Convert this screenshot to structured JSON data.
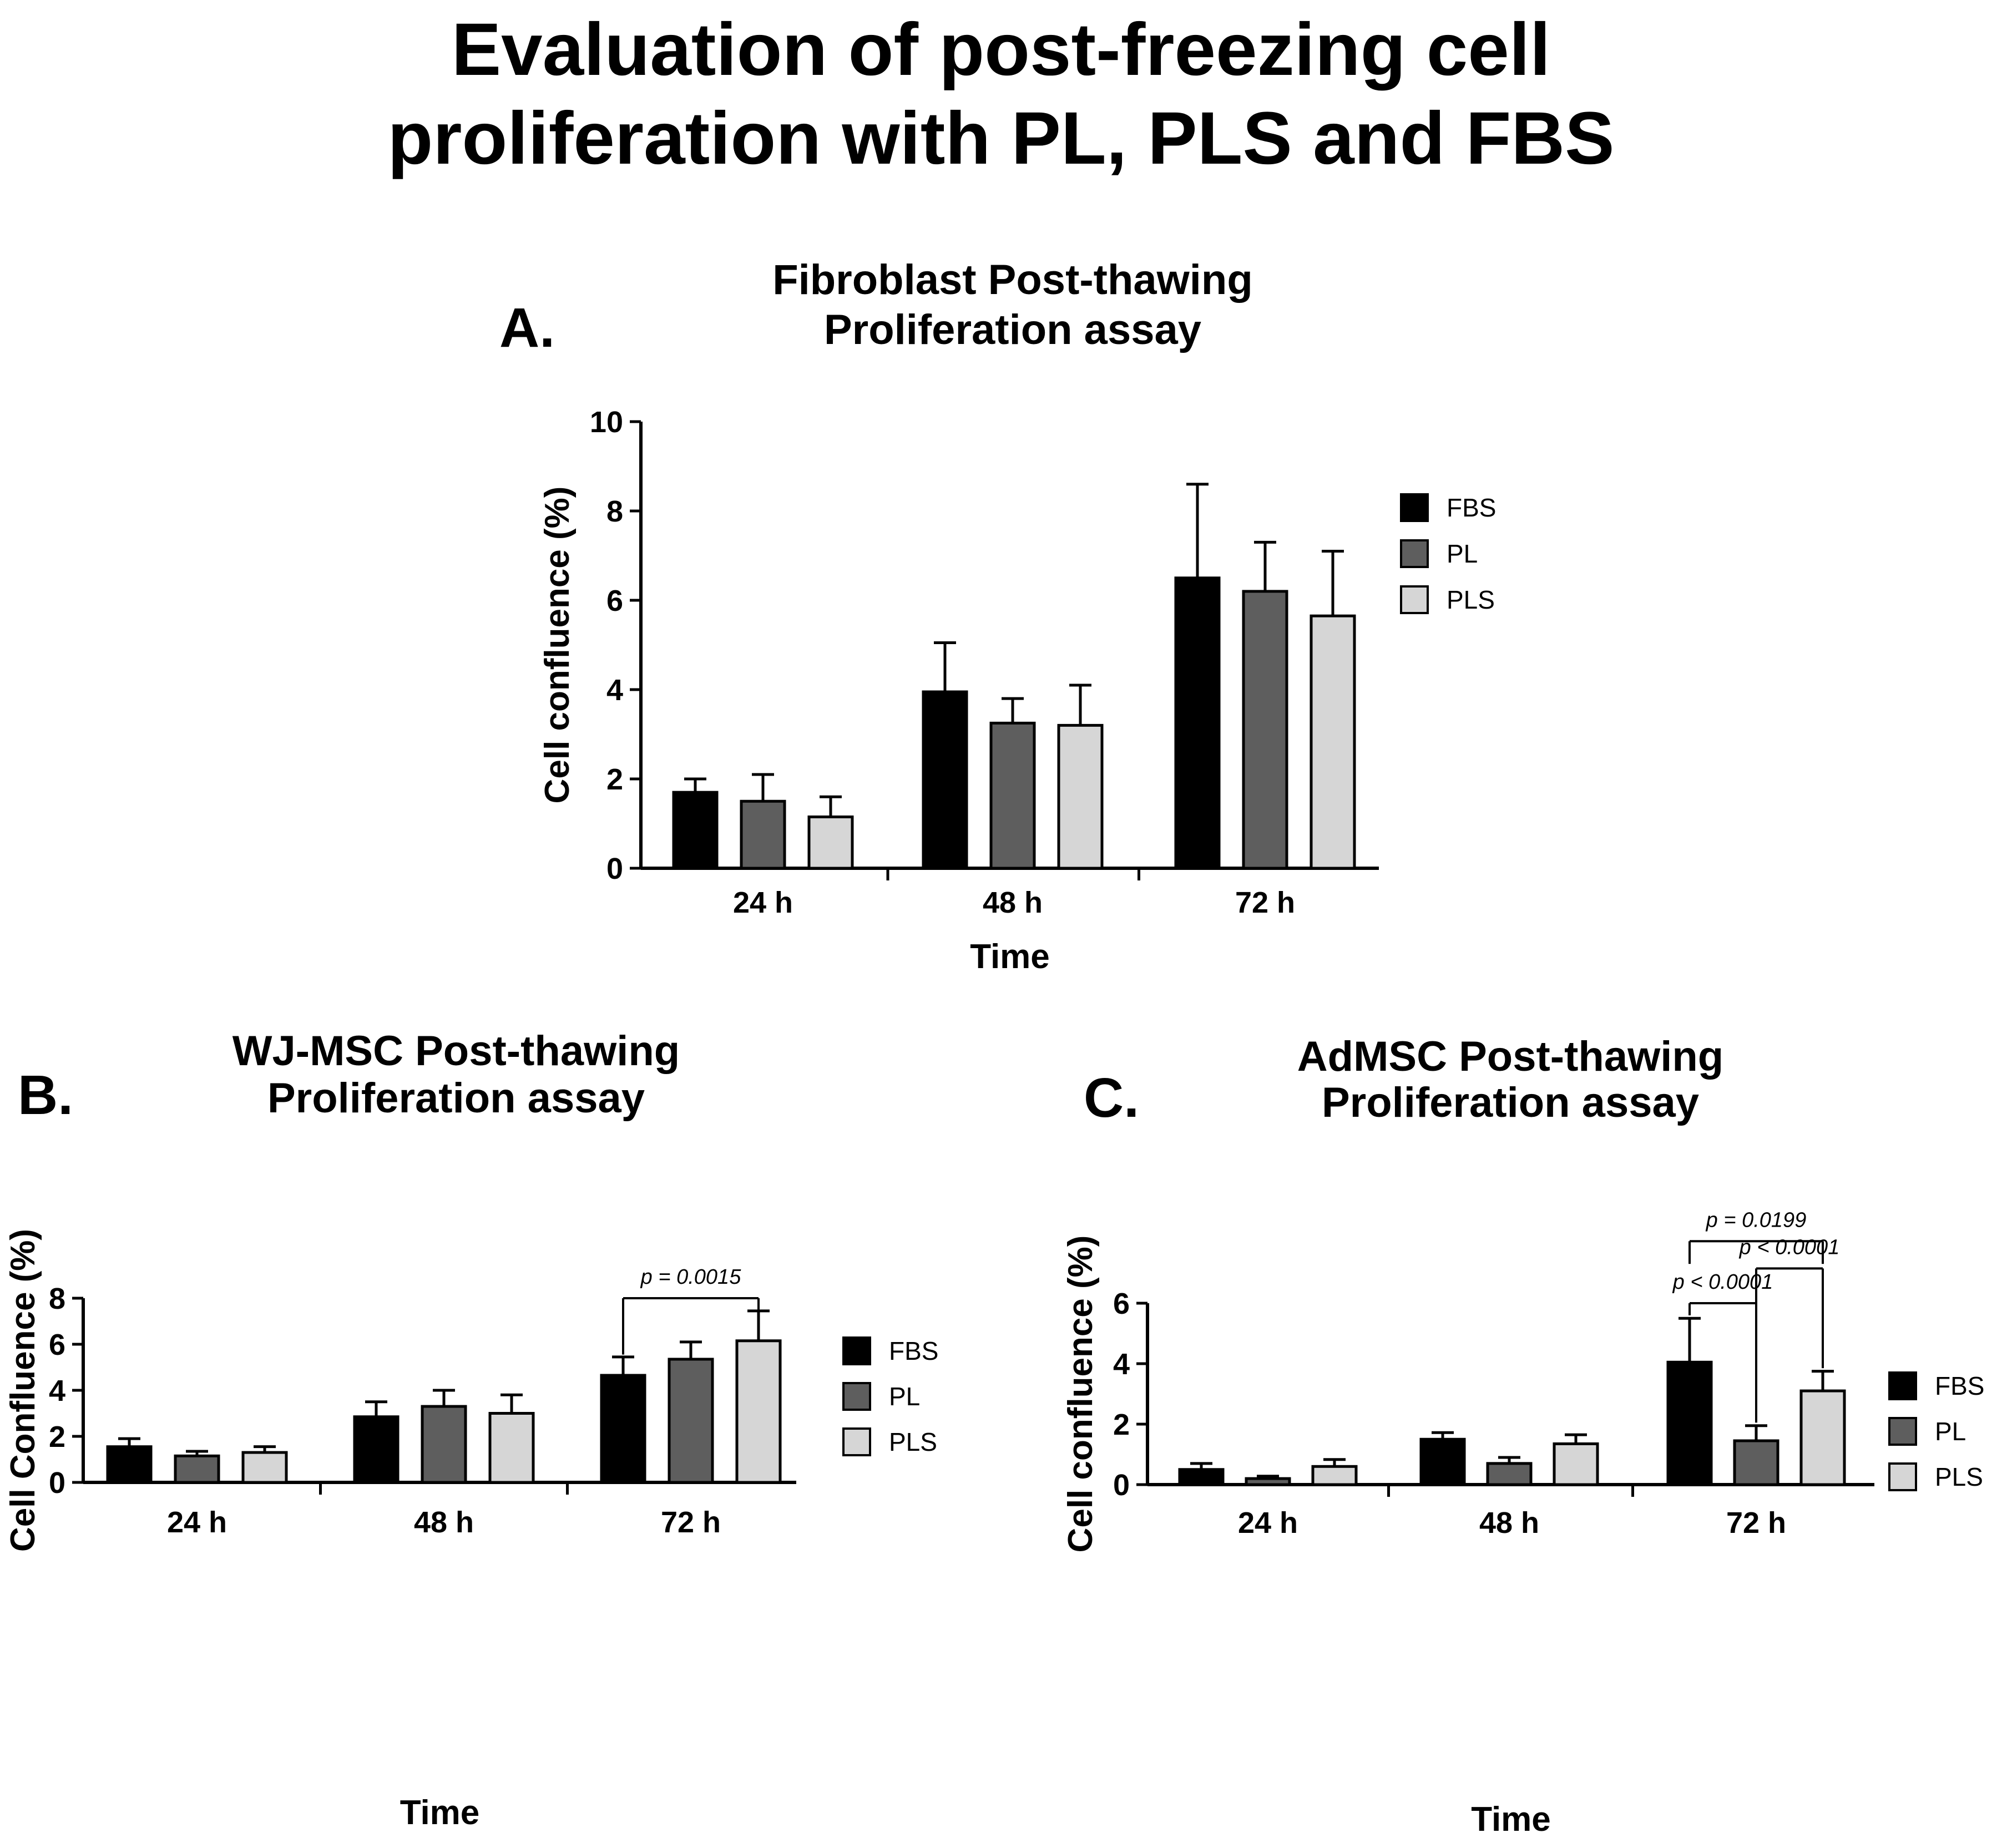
{
  "figure_title_lines": [
    "Evaluation of post-freezing cell",
    "proliferation with PL, PLS and FBS"
  ],
  "colors": {
    "FBS": "#000000",
    "PL": "#5e5e5e",
    "PLS": "#d6d6d6",
    "axis": "#000000"
  },
  "chart_data": [
    {
      "panel": "A.",
      "type": "bar",
      "title_lines": [
        "Fibroblast Post-thawing",
        "Proliferation assay"
      ],
      "xlabel": "Time",
      "ylabel": "Cell confluence (%)",
      "categories": [
        "24 h",
        "48 h",
        "72 h"
      ],
      "ylim": [
        0,
        10
      ],
      "yticks": [
        0,
        2,
        4,
        6,
        8,
        10
      ],
      "legend_position": "right",
      "series": [
        {
          "name": "FBS",
          "values": [
            1.7,
            3.95,
            6.5
          ],
          "errors": [
            0.3,
            1.1,
            2.1
          ]
        },
        {
          "name": "PL",
          "values": [
            1.5,
            3.25,
            6.2
          ],
          "errors": [
            0.6,
            0.55,
            1.1
          ]
        },
        {
          "name": "PLS",
          "values": [
            1.15,
            3.2,
            5.65
          ],
          "errors": [
            0.45,
            0.9,
            1.45
          ]
        }
      ],
      "annotations": []
    },
    {
      "panel": "B.",
      "type": "bar",
      "title_lines": [
        "WJ-MSC Post-thawing",
        "Proliferation assay"
      ],
      "xlabel": "Time",
      "ylabel": "Cell Confluence (%)",
      "categories": [
        "24 h",
        "48 h",
        "72 h"
      ],
      "ylim": [
        0,
        8
      ],
      "yticks": [
        0,
        2,
        4,
        6,
        8
      ],
      "legend_position": "right",
      "series": [
        {
          "name": "FBS",
          "values": [
            1.55,
            2.85,
            4.65
          ],
          "errors": [
            0.35,
            0.65,
            0.8
          ]
        },
        {
          "name": "PL",
          "values": [
            1.15,
            3.3,
            5.35
          ],
          "errors": [
            0.2,
            0.7,
            0.75
          ]
        },
        {
          "name": "PLS",
          "values": [
            1.3,
            3.0,
            6.15
          ],
          "errors": [
            0.25,
            0.8,
            1.3
          ]
        }
      ],
      "annotations": [
        {
          "text": "p = 0.0015",
          "category": 2,
          "from": "FBS",
          "to": "PLS",
          "y": 8.0,
          "drop_from": 5.55,
          "drop_to": 7.5
        }
      ]
    },
    {
      "panel": "C.",
      "type": "bar",
      "title_lines": [
        "AdMSC Post-thawing",
        "Proliferation assay"
      ],
      "xlabel": "Time",
      "ylabel": "Cell confluence (%)",
      "categories": [
        "24 h",
        "48 h",
        "72 h"
      ],
      "ylim": [
        0,
        6
      ],
      "yticks": [
        0,
        2,
        4,
        6
      ],
      "legend_position": "right",
      "series": [
        {
          "name": "FBS",
          "values": [
            0.5,
            1.5,
            4.05
          ],
          "errors": [
            0.2,
            0.22,
            1.45
          ]
        },
        {
          "name": "PL",
          "values": [
            0.2,
            0.7,
            1.45
          ],
          "errors": [
            0.08,
            0.2,
            0.5
          ]
        },
        {
          "name": "PLS",
          "values": [
            0.6,
            1.35,
            3.1
          ],
          "errors": [
            0.23,
            0.3,
            0.65
          ]
        }
      ],
      "annotations": [
        {
          "text": "p < 0.0001",
          "category": 2,
          "from": "FBS",
          "to": "PL",
          "y": 6.0,
          "drop_from": 5.6,
          "drop_to": 2.05
        },
        {
          "text": "p < 0.0001",
          "category": 2,
          "from": "PL",
          "to": "PLS",
          "y": 7.15,
          "drop_from": 6.0,
          "drop_to": 3.85
        },
        {
          "text": "p = 0.0199",
          "category": 2,
          "from": "FBS",
          "to": "PLS",
          "y": 8.05,
          "drop_from": 7.3,
          "drop_to": 7.3
        }
      ]
    }
  ]
}
